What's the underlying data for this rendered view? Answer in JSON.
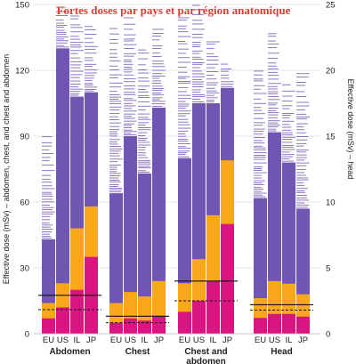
{
  "chart_data": {
    "type": "bar",
    "title": "Fortes doses par pays et par région anatomique",
    "ylabel_left": "Effective dose (mSv) – abdomen, chest, and chest and abdomen",
    "ylabel_right": "Effective dose (mSv) – head",
    "ylim_left": [
      0,
      150
    ],
    "ylim_right": [
      0,
      25
    ],
    "yticks_left": [
      "0",
      "30",
      "60",
      "90",
      "120",
      "150"
    ],
    "yticks_right": [
      "0",
      "5",
      "10",
      "15",
      "20",
      "25"
    ],
    "colors": {
      "high": "#7055b5",
      "mid": "#f9a81a",
      "low": "#d91582",
      "line": "#6a4fb0"
    },
    "groups": [
      {
        "name": "Abdomen",
        "axis": "left",
        "solid_line": 17.5,
        "dashed_line": 11,
        "bars": [
          {
            "country": "EU",
            "low": 7,
            "mid": 14,
            "high": 43,
            "lines_top": 90
          },
          {
            "country": "US",
            "low": 12,
            "mid": 23,
            "high": 130,
            "lines_top": 150
          },
          {
            "country": "IL",
            "low": 20,
            "mid": 48,
            "high": 108,
            "lines_top": 145
          },
          {
            "country": "JP",
            "low": 35,
            "mid": 58,
            "high": 110,
            "lines_top": 140
          }
        ]
      },
      {
        "name": "Chest",
        "axis": "left",
        "solid_line": 8,
        "dashed_line": 5,
        "bars": [
          {
            "country": "EU",
            "low": 5,
            "mid": 14,
            "high": 64,
            "lines_top": 140
          },
          {
            "country": "US",
            "low": 7,
            "mid": 19,
            "high": 90,
            "lines_top": 145
          },
          {
            "country": "IL",
            "low": 6,
            "mid": 17,
            "high": 73,
            "lines_top": 130
          },
          {
            "country": "JP",
            "low": 8,
            "mid": 24,
            "high": 103,
            "lines_top": 140
          }
        ]
      },
      {
        "name": "Chest and abdomen",
        "axis": "left",
        "solid_line": 24,
        "dashed_line": 15,
        "bars": [
          {
            "country": "EU",
            "low": 10,
            "mid": 23,
            "high": 80,
            "lines_top": 145
          },
          {
            "country": "US",
            "low": 15,
            "mid": 34,
            "high": 105,
            "lines_top": 150
          },
          {
            "country": "IL",
            "low": 24,
            "mid": 54,
            "high": 105,
            "lines_top": 135
          },
          {
            "country": "JP",
            "low": 50,
            "mid": 79,
            "high": 112,
            "lines_top": 125
          }
        ]
      },
      {
        "name": "Head",
        "axis": "right",
        "solid_line": 2.2,
        "dashed_line": 1.8,
        "bars": [
          {
            "country": "EU",
            "low": 1.2,
            "mid": 2.7,
            "high": 10.3,
            "lines_top": 20
          },
          {
            "country": "US",
            "low": 1.5,
            "mid": 4.0,
            "high": 15.3,
            "lines_top": 23
          },
          {
            "country": "IL",
            "low": 1.5,
            "mid": 3.8,
            "high": 13.0,
            "lines_top": 19
          },
          {
            "country": "JP",
            "low": 1.3,
            "mid": 3.0,
            "high": 9.5,
            "lines_top": 20
          }
        ]
      }
    ],
    "x_group_labels": [
      "Abdomen",
      "Chest",
      "Chest and\nabdomen",
      "Head"
    ],
    "grid": true
  }
}
